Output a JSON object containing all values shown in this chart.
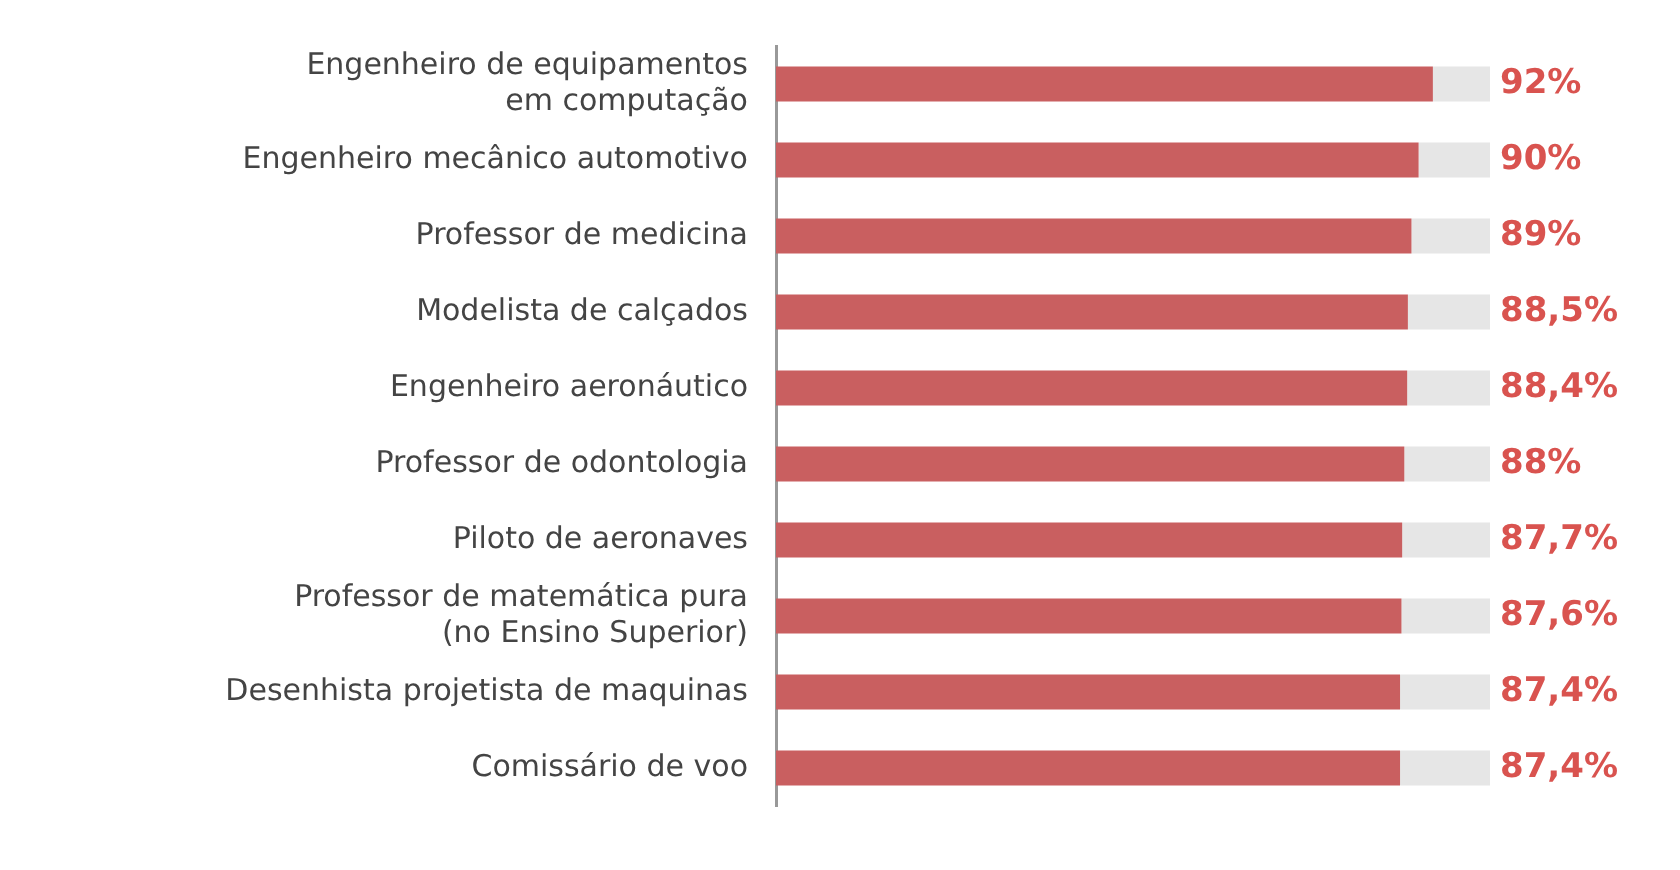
{
  "chart_data": {
    "type": "bar",
    "orientation": "horizontal",
    "stacked": true,
    "categories": [
      "Engenheiro de equipamentos\nem computação",
      "Engenheiro mecânico automotivo",
      "Professor de medicina",
      "Modelista de calçados",
      "Engenheiro aeronáutico",
      "Professor de odontologia",
      "Piloto de aeronaves",
      "Professor de matemática pura\n(no Ensino Superior)",
      "Desenhista projetista de maquinas",
      "Comissário de voo"
    ],
    "series": [
      {
        "color": "#c95f60",
        "values": [
          92,
          90,
          89,
          88.5,
          88.4,
          88,
          87.7,
          87.6,
          87.4,
          87.4
        ],
        "value_labels": [
          "92%",
          "90%",
          "89%",
          "88,5%",
          "88,4%",
          "88%",
          "87,7%",
          "87,6%",
          "87,4%",
          "87,4%"
        ]
      },
      {
        "color": "#e6e6e6",
        "values": [
          8,
          10,
          11,
          11.5,
          11.6,
          12,
          12.3,
          12.4,
          12.6,
          12.6
        ]
      }
    ],
    "xlim": [
      0,
      100
    ],
    "tick_labels": "y",
    "legend": false
  }
}
